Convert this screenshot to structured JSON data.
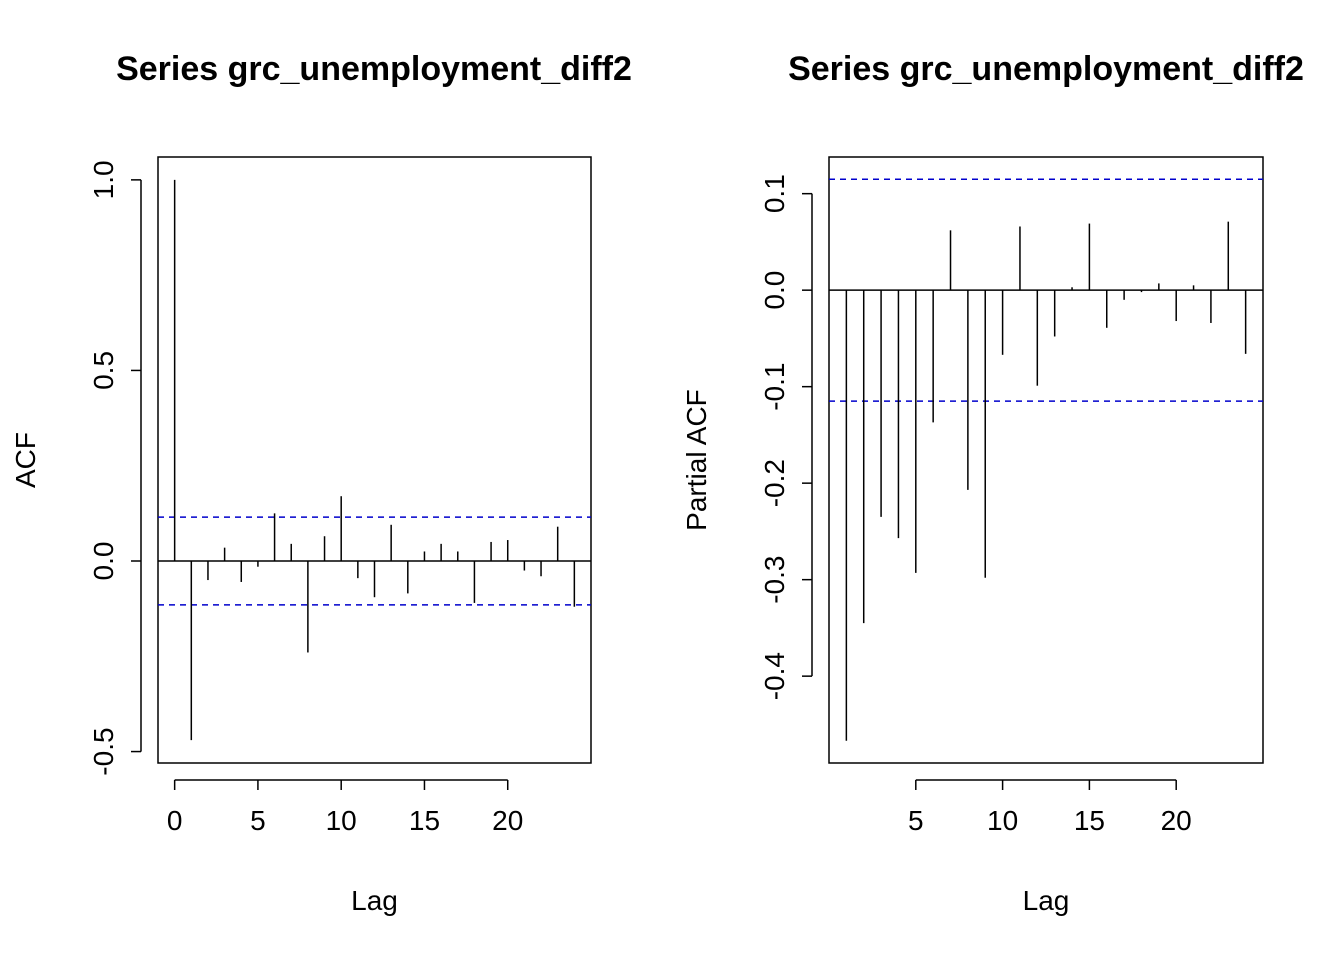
{
  "chart_data": [
    {
      "type": "bar",
      "subtype": "acf-spike",
      "title": "Series  grc_unemployment_diff2",
      "xlabel": "Lag",
      "ylabel": "ACF",
      "xlim": [
        -1,
        25
      ],
      "ylim": [
        -0.53,
        1.06
      ],
      "x_ticks": [
        0,
        5,
        10,
        15,
        20
      ],
      "x_tick_labels": [
        "0",
        "5",
        "10",
        "15",
        "20"
      ],
      "y_ticks": [
        -0.5,
        0.0,
        0.5,
        1.0
      ],
      "y_tick_labels": [
        "-0.5",
        "0.0",
        "0.5",
        "1.0"
      ],
      "confidence_bound": 0.115,
      "confidence_color": "#0000cc",
      "lags": [
        0,
        1,
        2,
        3,
        4,
        5,
        6,
        7,
        8,
        9,
        10,
        11,
        12,
        13,
        14,
        15,
        16,
        17,
        18,
        19,
        20,
        21,
        22,
        23,
        24
      ],
      "values": [
        1.0,
        -0.47,
        -0.05,
        0.035,
        -0.055,
        -0.015,
        0.125,
        0.045,
        -0.24,
        0.065,
        0.17,
        -0.045,
        -0.095,
        0.095,
        -0.085,
        0.025,
        0.045,
        0.025,
        -0.11,
        0.05,
        0.055,
        -0.025,
        -0.04,
        0.09,
        -0.12
      ]
    },
    {
      "type": "bar",
      "subtype": "pacf-spike",
      "title": "Series  grc_unemployment_diff2",
      "xlabel": "Lag",
      "ylabel": "Partial ACF",
      "xlim": [
        0,
        25
      ],
      "ylim": [
        -0.49,
        0.138
      ],
      "x_ticks": [
        5,
        10,
        15,
        20
      ],
      "x_tick_labels": [
        "5",
        "10",
        "15",
        "20"
      ],
      "y_ticks": [
        -0.4,
        -0.3,
        -0.2,
        -0.1,
        0.0,
        0.1
      ],
      "y_tick_labels": [
        "-0.4",
        "-0.3",
        "-0.2",
        "-0.1",
        "0.0",
        "0.1"
      ],
      "confidence_bound": 0.115,
      "confidence_color": "#0000cc",
      "lags": [
        1,
        2,
        3,
        4,
        5,
        6,
        7,
        8,
        9,
        10,
        11,
        12,
        13,
        14,
        15,
        16,
        17,
        18,
        19,
        20,
        21,
        22,
        23,
        24
      ],
      "values": [
        -0.467,
        -0.345,
        -0.235,
        -0.257,
        -0.293,
        -0.137,
        0.062,
        -0.207,
        -0.298,
        -0.067,
        0.066,
        -0.099,
        -0.048,
        0.003,
        0.069,
        -0.039,
        -0.01,
        -0.002,
        0.007,
        -0.032,
        0.005,
        -0.034,
        0.071,
        -0.066
      ]
    }
  ]
}
